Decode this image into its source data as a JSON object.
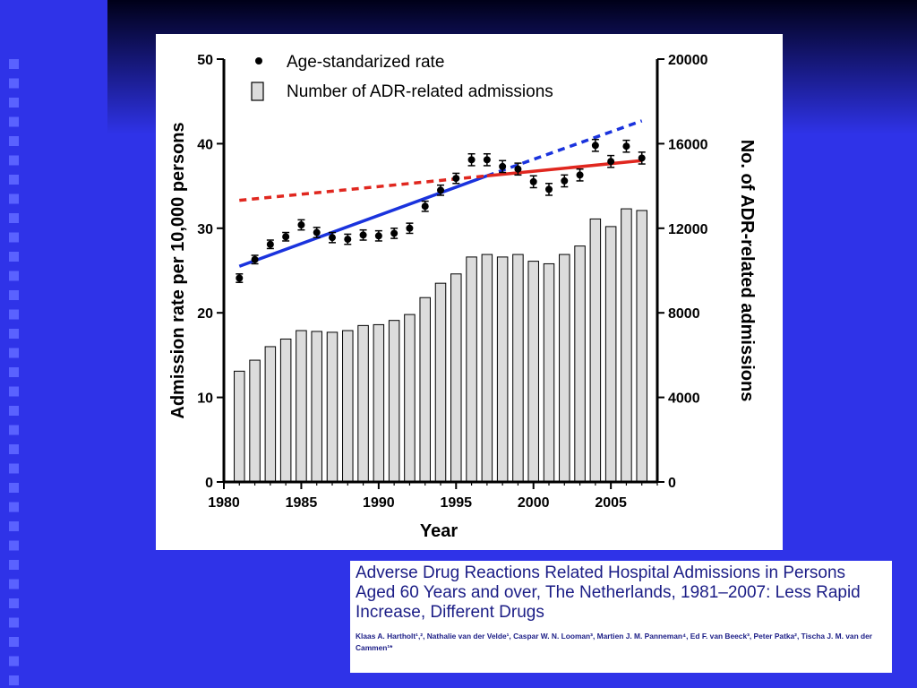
{
  "slide": {
    "colors": {
      "background": "#2f33e8",
      "top_band": "#000022",
      "tile": "#5a62ff",
      "citation_text": "#1b1d86"
    }
  },
  "citation": {
    "title": "Adverse Drug Reactions Related Hospital Admissions in Persons Aged 60 Years and over, The Netherlands, 1981–2007: Less Rapid Increase, Different Drugs",
    "authors": "Klaas A. Hartholt¹,², Nathalie van der Velde¹, Caspar W. N. Looman³, Martien J. M. Panneman⁴, Ed F. van Beeck³, Peter Patka², Tischa J. M. van der Cammen¹*"
  },
  "chart_data": {
    "type": "bar",
    "title": "",
    "xlabel": "Year",
    "ylabel": "Admission rate per 10,000 persons",
    "y2label": "No. of ADR-related admissions",
    "xlim": [
      1980,
      2008
    ],
    "ylim": [
      0,
      50
    ],
    "y2lim": [
      0,
      20000
    ],
    "x_ticks": [
      1980,
      1985,
      1990,
      1995,
      2000,
      2005
    ],
    "y_ticks": [
      0,
      10,
      20,
      30,
      40,
      50
    ],
    "y2_ticks": [
      0,
      4000,
      8000,
      12000,
      16000,
      20000
    ],
    "grid": false,
    "legend_position": "top-left",
    "series": [
      {
        "name": "Number of ADR-related admissions",
        "type": "bar",
        "axis": "right",
        "x": [
          1981,
          1982,
          1983,
          1984,
          1985,
          1986,
          1987,
          1988,
          1989,
          1990,
          1991,
          1992,
          1993,
          1994,
          1995,
          1996,
          1997,
          1998,
          1999,
          2000,
          2001,
          2002,
          2003,
          2004,
          2005,
          2006,
          2007
        ],
        "values": [
          5240,
          5760,
          6400,
          6760,
          7160,
          7120,
          7080,
          7160,
          7400,
          7440,
          7640,
          7920,
          8720,
          9400,
          9840,
          10640,
          10760,
          10640,
          10760,
          10440,
          10320,
          10760,
          11160,
          12440,
          12080,
          12920,
          12840
        ]
      },
      {
        "name": "Age-standarized rate",
        "type": "scatter",
        "axis": "left",
        "x": [
          1981,
          1982,
          1983,
          1984,
          1985,
          1986,
          1987,
          1988,
          1989,
          1990,
          1991,
          1992,
          1993,
          1994,
          1995,
          1996,
          1997,
          1998,
          1999,
          2000,
          2001,
          2002,
          2003,
          2004,
          2005,
          2006,
          2007
        ],
        "values": [
          24.1,
          26.3,
          28.1,
          29.0,
          30.4,
          29.5,
          28.9,
          28.7,
          29.2,
          29.1,
          29.4,
          30.0,
          32.6,
          34.5,
          35.9,
          38.1,
          38.1,
          37.3,
          37.0,
          35.5,
          34.6,
          35.6,
          36.3,
          39.8,
          37.9,
          39.7,
          38.3
        ],
        "error": [
          0.5,
          0.5,
          0.5,
          0.5,
          0.6,
          0.6,
          0.6,
          0.6,
          0.6,
          0.6,
          0.6,
          0.6,
          0.6,
          0.6,
          0.6,
          0.7,
          0.7,
          0.7,
          0.7,
          0.7,
          0.7,
          0.7,
          0.7,
          0.7,
          0.7,
          0.7,
          0.7
        ]
      }
    ],
    "trend_lines": [
      {
        "color": "#1a33dd",
        "style": "solid",
        "x": [
          1981,
          1997
        ],
        "y": [
          25.5,
          36.2
        ]
      },
      {
        "color": "#1a33dd",
        "style": "dashed",
        "x": [
          1997,
          2007
        ],
        "y": [
          36.2,
          42.7
        ]
      },
      {
        "color": "#e0271f",
        "style": "dashed",
        "x": [
          1981,
          1997
        ],
        "y": [
          33.3,
          36.2
        ]
      },
      {
        "color": "#e0271f",
        "style": "solid",
        "x": [
          1997,
          2007
        ],
        "y": [
          36.2,
          38.0
        ]
      }
    ]
  }
}
